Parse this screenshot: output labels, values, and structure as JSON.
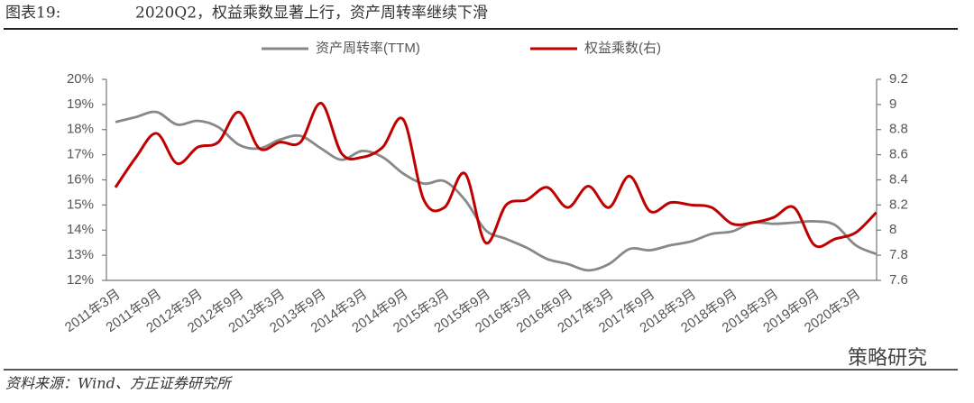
{
  "chart_data": {
    "type": "line",
    "figure_label": "图表19:",
    "title": "2020Q2，权益乘数显著上行，资产周转率继续下滑",
    "source": "资料来源：Wind、方正证券研究所",
    "watermark": "策略研究",
    "categories": [
      "2011年3月",
      null,
      "2011年9月",
      null,
      "2012年3月",
      null,
      "2012年9月",
      null,
      "2013年3月",
      null,
      "2013年9月",
      null,
      "2014年3月",
      null,
      "2014年9月",
      null,
      "2015年3月",
      null,
      "2015年9月",
      null,
      "2016年3月",
      null,
      "2016年9月",
      null,
      "2017年3月",
      null,
      "2017年9月",
      null,
      "2018年3月",
      null,
      "2018年9月",
      null,
      "2019年3月",
      null,
      "2019年9月",
      null,
      "2020年3月",
      null
    ],
    "series": [
      {
        "name": "资产周转率(TTM)",
        "color": "#888888",
        "values": [
          18.3,
          18.5,
          18.7,
          18.2,
          18.35,
          18.1,
          17.4,
          17.25,
          17.6,
          17.75,
          17.25,
          16.8,
          17.15,
          16.9,
          16.25,
          15.85,
          15.95,
          15.2,
          14.0,
          13.65,
          13.3,
          12.85,
          12.65,
          12.4,
          12.65,
          13.25,
          13.2,
          13.4,
          13.55,
          13.85,
          13.95,
          14.3,
          14.25,
          14.3,
          14.35,
          14.2,
          13.4,
          13.05
        ]
      },
      {
        "name": "权益乘数(右)",
        "color": "#c00000",
        "axis": "y2",
        "values": [
          8.34,
          8.58,
          8.77,
          8.53,
          8.66,
          8.7,
          8.94,
          8.65,
          8.7,
          8.7,
          9.01,
          8.61,
          8.58,
          8.66,
          8.88,
          8.24,
          8.18,
          8.45,
          7.9,
          8.2,
          8.24,
          8.34,
          8.18,
          8.35,
          8.18,
          8.43,
          8.15,
          8.22,
          8.2,
          8.18,
          8.05,
          8.06,
          8.1,
          8.18,
          7.88,
          7.93,
          7.98,
          8.14
        ]
      }
    ],
    "ylim": [
      12,
      20
    ],
    "yticks": [
      {
        "value": 12,
        "label": "12%"
      },
      {
        "value": 13,
        "label": "13%"
      },
      {
        "value": 14,
        "label": "14%"
      },
      {
        "value": 15,
        "label": "15%"
      },
      {
        "value": 16,
        "label": "16%"
      },
      {
        "value": 17,
        "label": "17%"
      },
      {
        "value": 18,
        "label": "18%"
      },
      {
        "value": 19,
        "label": "19%"
      },
      {
        "value": 20,
        "label": "20%"
      }
    ],
    "y2lim": [
      7.6,
      9.2
    ],
    "y2ticks": [
      7.6,
      7.8,
      8,
      8.2,
      8.4,
      8.6,
      8.8,
      9,
      9.2
    ],
    "grid": false,
    "legend": "top"
  }
}
